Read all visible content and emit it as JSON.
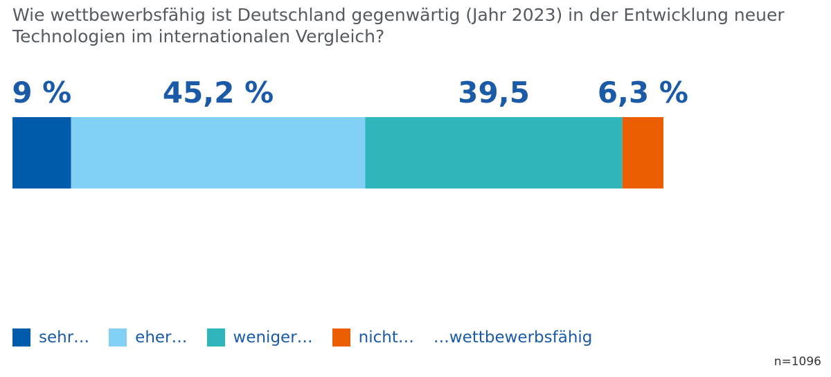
{
  "chart_data": {
    "type": "bar",
    "orientation": "horizontal-stacked",
    "title": "Wie wettbewerbsfähig ist Deutschland gegenwärtig (Jahr 2023) in der Entwicklung neuer\nTechnologien im internationalen Vergleich?",
    "series": [
      {
        "name": "sehr…",
        "value": 9,
        "label": "9 %",
        "color": "#005bab"
      },
      {
        "name": "eher…",
        "value": 45.2,
        "label": "45,2 %",
        "color": "#82d0f5"
      },
      {
        "name": "weniger…",
        "value": 39.5,
        "label": "39,5",
        "color": "#2eb6bb"
      },
      {
        "name": "nicht…",
        "value": 6.3,
        "label": "6,3 %",
        "color": "#ea5d00"
      }
    ],
    "legend_suffix": "…wettbewerbsfähig",
    "legend_position": "bottom",
    "label_color": "#1a5aa6",
    "note": "n=1096"
  }
}
